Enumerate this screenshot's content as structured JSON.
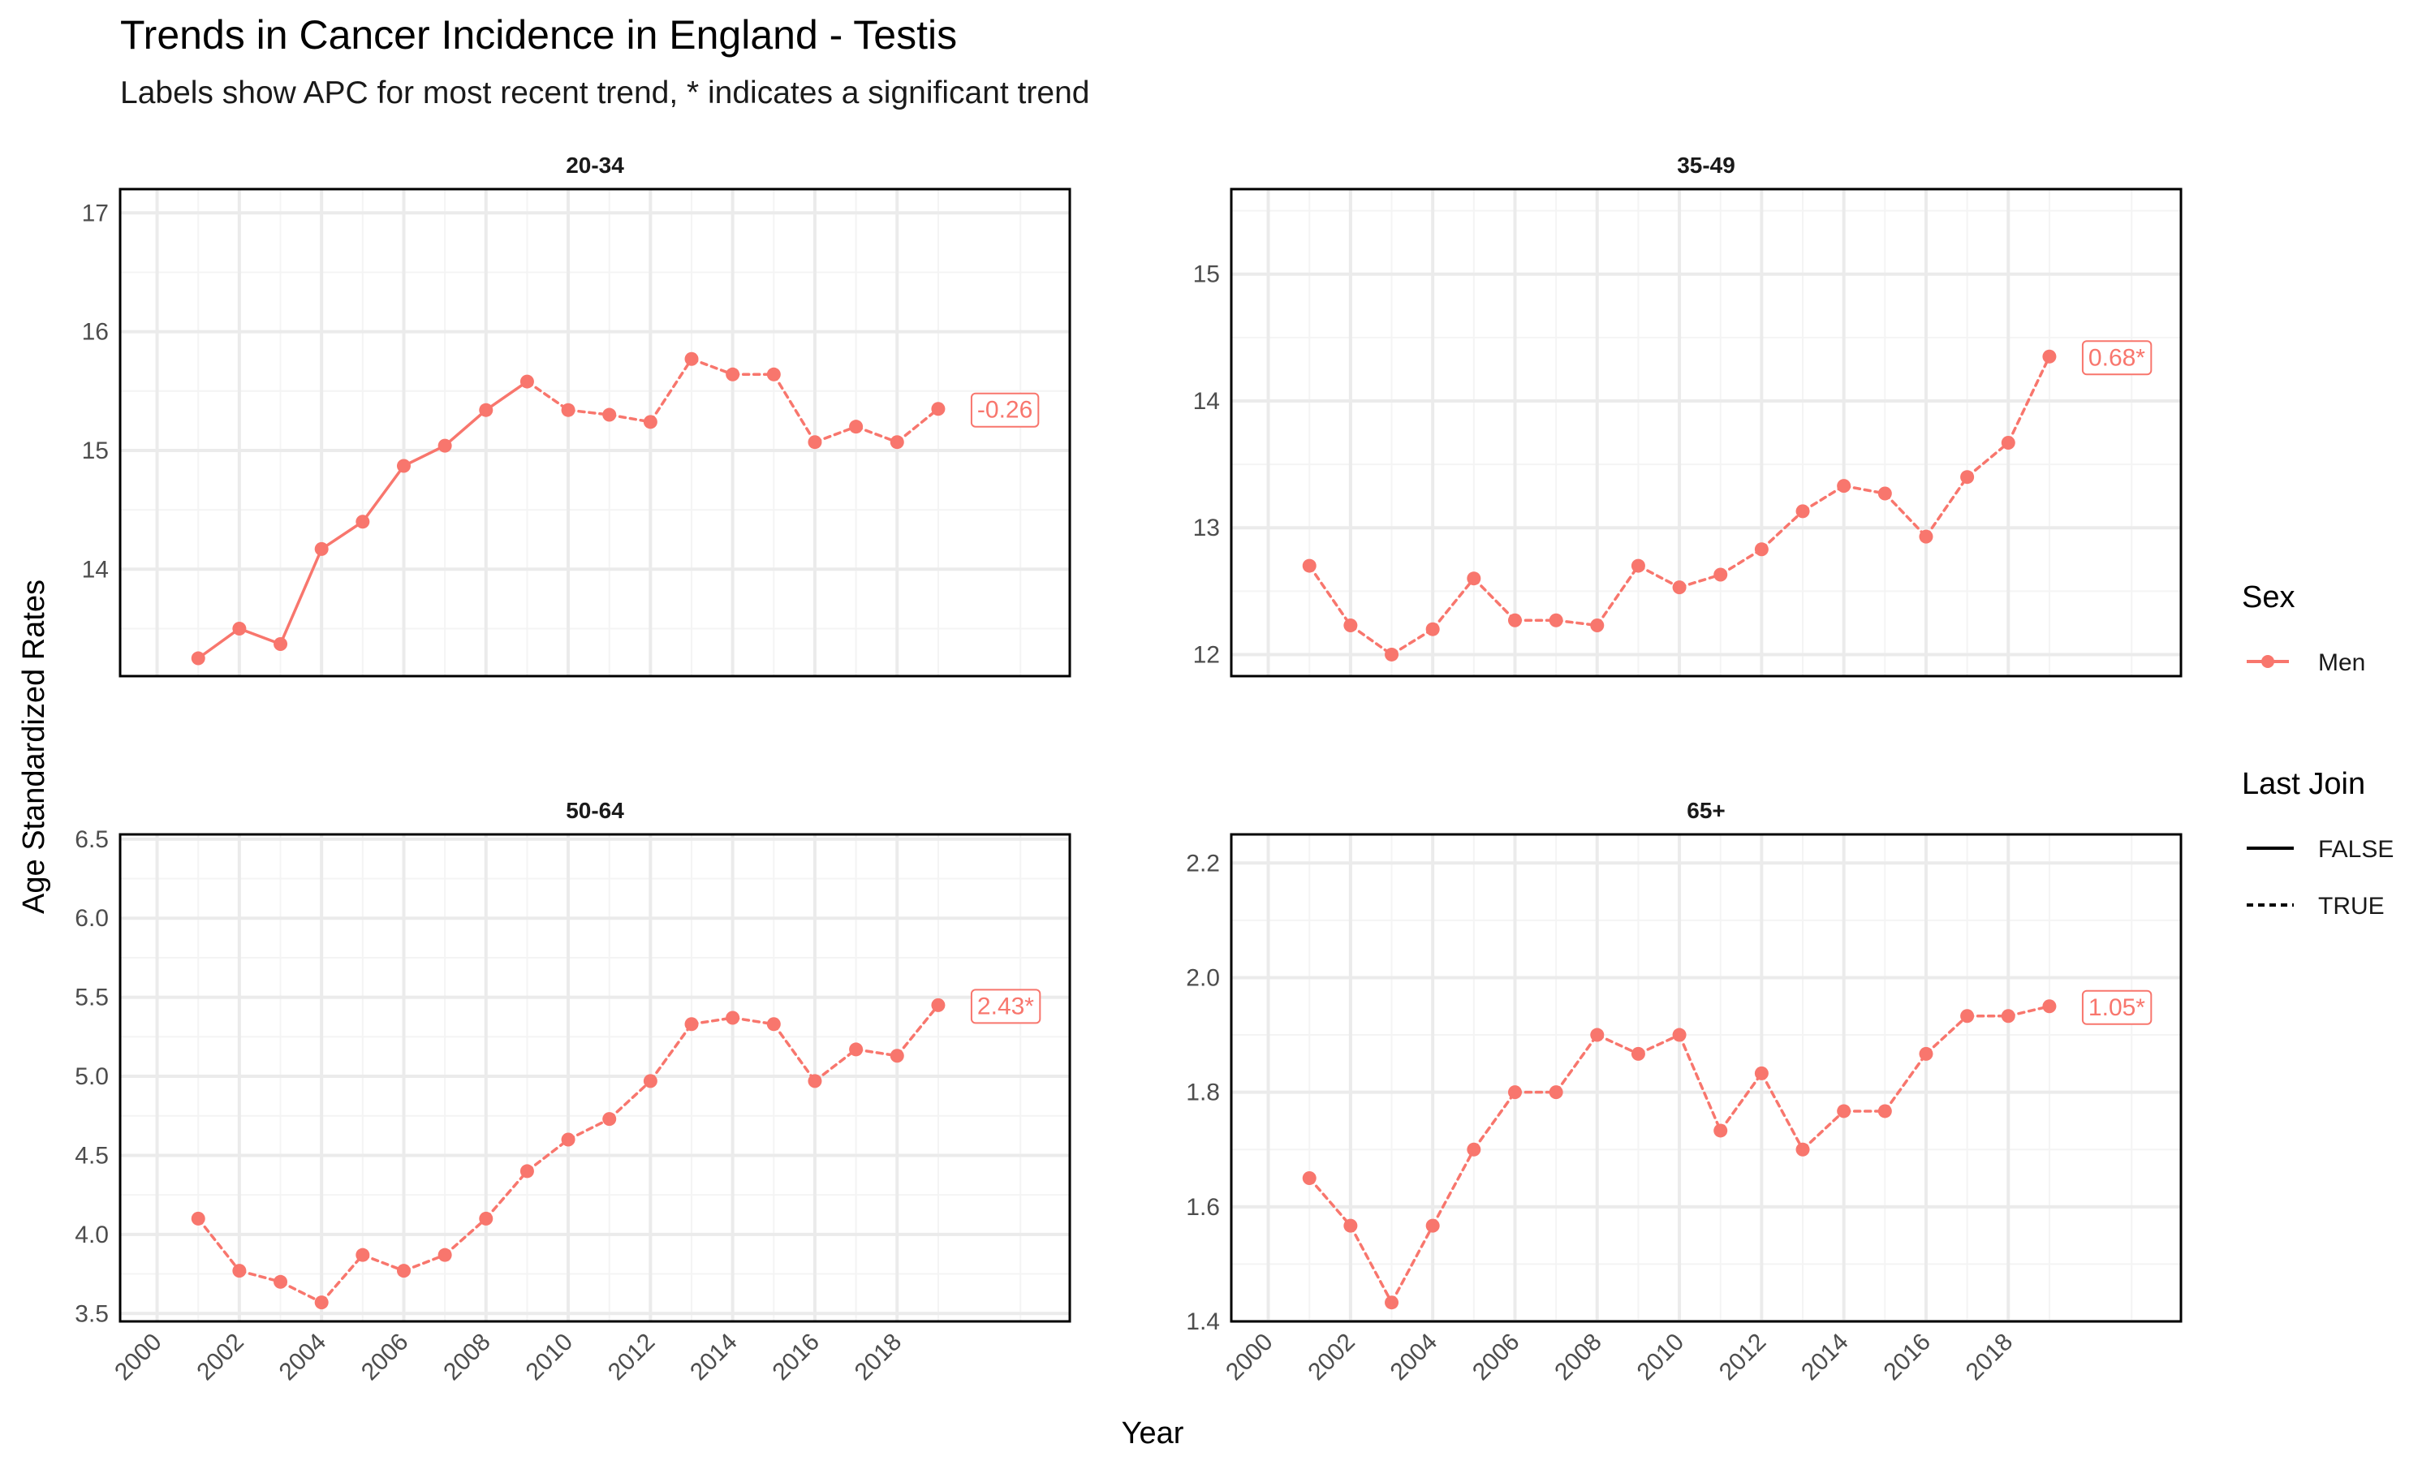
{
  "title": "Trends in Cancer Incidence in England - Testis",
  "subtitle": "Labels show APC for most recent trend, * indicates a significant trend",
  "colors": {
    "series": "#F8766D",
    "panel_border": "#000000",
    "grid_major": "#ebebeb",
    "grid_minor": "#f4f4f4"
  },
  "chart_data": {
    "type": "line",
    "xlabel": "Year",
    "ylabel": "Age Standardized Rates",
    "x_ticks": [
      "2000",
      "2002",
      "2004",
      "2006",
      "2008",
      "2010",
      "2012",
      "2014",
      "2016",
      "2018"
    ],
    "xlim": [
      1999.1,
      2022.2
    ],
    "legend_position": "right",
    "legend": {
      "sex_title": "Sex",
      "sex_items": [
        "Men"
      ],
      "join_title": "Last Join",
      "join_items": [
        {
          "label": "FALSE",
          "linetype": "solid"
        },
        {
          "label": "TRUE",
          "linetype": "dashed"
        }
      ]
    },
    "panels": [
      {
        "name": "20-34",
        "ylim": [
          13.1,
          17.2
        ],
        "y_ticks": [
          14,
          15,
          16,
          17
        ],
        "y_tick_labels": [
          "14",
          "15",
          "16",
          "17"
        ],
        "apc_label": "-0.26",
        "series": [
          {
            "name": "Men",
            "x": [
              2001,
              2002,
              2003,
              2004,
              2005,
              2006,
              2007,
              2008,
              2009,
              2010,
              2011,
              2012,
              2013,
              2014,
              2015,
              2016,
              2017,
              2018,
              2019
            ],
            "y": [
              13.25,
              13.5,
              13.37,
              14.17,
              14.4,
              14.87,
              15.04,
              15.34,
              15.58,
              15.34,
              15.3,
              15.24,
              15.77,
              15.64,
              15.64,
              15.07,
              15.2,
              15.07,
              15.35
            ],
            "last_join": [
              false,
              false,
              false,
              false,
              false,
              false,
              false,
              false,
              false,
              true,
              true,
              true,
              true,
              true,
              true,
              true,
              true,
              true,
              true
            ]
          }
        ]
      },
      {
        "name": "35-49",
        "ylim": [
          11.83,
          15.67
        ],
        "y_ticks": [
          12,
          13,
          14,
          15
        ],
        "y_tick_labels": [
          "12",
          "13",
          "14",
          "15"
        ],
        "apc_label": "0.68*",
        "series": [
          {
            "name": "Men",
            "x": [
              2001,
              2002,
              2003,
              2004,
              2005,
              2006,
              2007,
              2008,
              2009,
              2010,
              2011,
              2012,
              2013,
              2014,
              2015,
              2016,
              2017,
              2018,
              2019
            ],
            "y": [
              12.7,
              12.23,
              12.0,
              12.2,
              12.6,
              12.27,
              12.27,
              12.23,
              12.7,
              12.53,
              12.63,
              12.83,
              13.13,
              13.33,
              13.27,
              12.93,
              13.4,
              13.67,
              14.35
            ],
            "last_join": [
              true,
              true,
              true,
              true,
              true,
              true,
              true,
              true,
              true,
              true,
              true,
              true,
              true,
              true,
              true,
              true,
              true,
              true,
              true
            ]
          }
        ]
      },
      {
        "name": "50-64",
        "ylim": [
          3.45,
          6.53
        ],
        "y_ticks": [
          3.5,
          4.0,
          4.5,
          5.0,
          5.5,
          6.0,
          6.5
        ],
        "y_tick_labels": [
          "3.5",
          "4.0",
          "4.5",
          "5.0",
          "5.5",
          "6.0",
          "6.5"
        ],
        "apc_label": "2.43*",
        "series": [
          {
            "name": "Men",
            "x": [
              2001,
              2002,
              2003,
              2004,
              2005,
              2006,
              2007,
              2008,
              2009,
              2010,
              2011,
              2012,
              2013,
              2014,
              2015,
              2016,
              2017,
              2018,
              2019
            ],
            "y": [
              4.1,
              3.77,
              3.7,
              3.57,
              3.87,
              3.77,
              3.87,
              4.1,
              4.4,
              4.6,
              4.73,
              4.97,
              5.33,
              5.37,
              5.33,
              4.97,
              5.17,
              5.13,
              5.45
            ],
            "last_join": [
              true,
              true,
              true,
              true,
              true,
              true,
              true,
              true,
              true,
              true,
              true,
              true,
              true,
              true,
              true,
              true,
              true,
              true,
              true
            ]
          }
        ]
      },
      {
        "name": "65+",
        "ylim": [
          1.4,
          2.25
        ],
        "y_ticks": [
          1.4,
          1.6,
          1.8,
          2.0,
          2.2
        ],
        "y_tick_labels": [
          "1.4",
          "1.6",
          "1.8",
          "2.0",
          "2.2"
        ],
        "apc_label": "1.05*",
        "series": [
          {
            "name": "Men",
            "x": [
              2001,
              2002,
              2003,
              2004,
              2005,
              2006,
              2007,
              2008,
              2009,
              2010,
              2011,
              2012,
              2013,
              2014,
              2015,
              2016,
              2017,
              2018,
              2019
            ],
            "y": [
              1.65,
              1.567,
              1.433,
              1.567,
              1.7,
              1.8,
              1.8,
              1.9,
              1.867,
              1.9,
              1.733,
              1.833,
              1.7,
              1.767,
              1.767,
              1.867,
              1.933,
              1.933,
              1.95
            ],
            "last_join": [
              true,
              true,
              true,
              true,
              true,
              true,
              true,
              true,
              true,
              true,
              true,
              true,
              true,
              true,
              true,
              true,
              true,
              true,
              true
            ]
          }
        ]
      }
    ]
  }
}
